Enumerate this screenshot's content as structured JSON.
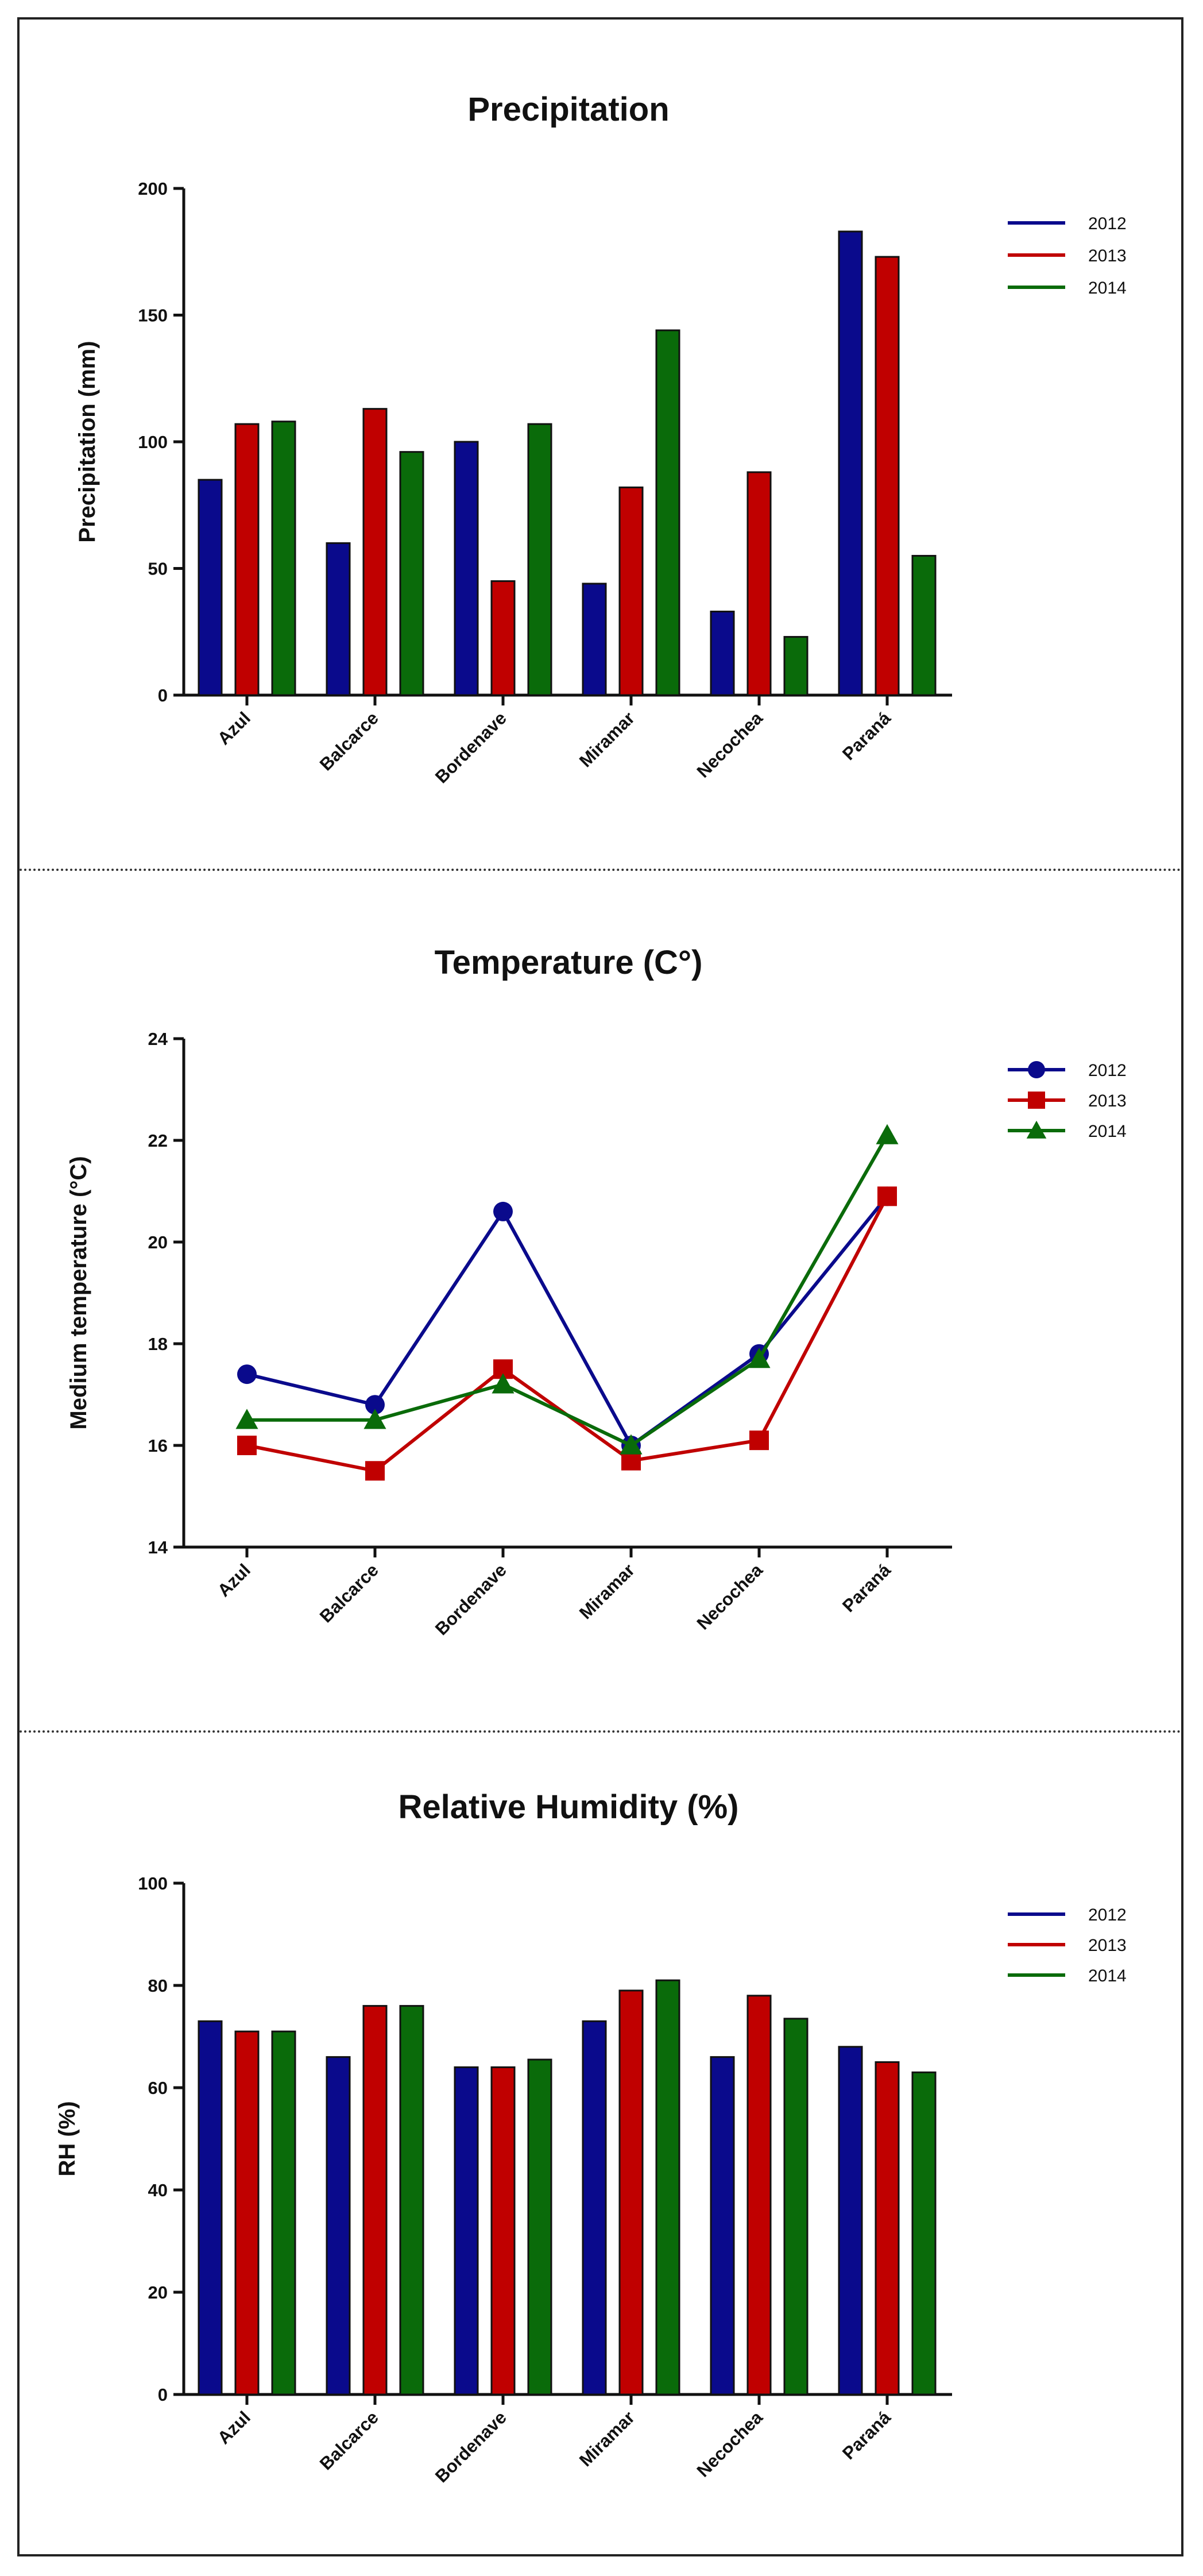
{
  "chart_data": [
    {
      "type": "bar",
      "title": "Precipitation",
      "xlabel": "",
      "ylabel": "Precipitation (mm)",
      "ylim": [
        0,
        200
      ],
      "yticks": [
        0,
        50,
        100,
        150,
        200
      ],
      "categories": [
        "Azul",
        "Balcarce",
        "Bordenave",
        "Miramar",
        "Necochea",
        "Paraná"
      ],
      "series": [
        {
          "name": "2012",
          "color": "#0a0a8c",
          "values": [
            85,
            60,
            100,
            44,
            33,
            183
          ]
        },
        {
          "name": "2013",
          "color": "#c00000",
          "values": [
            107,
            113,
            45,
            82,
            88,
            173
          ]
        },
        {
          "name": "2014",
          "color": "#0a6b0a",
          "values": [
            108,
            96,
            107,
            144,
            23,
            55
          ]
        }
      ],
      "legend": "top-right"
    },
    {
      "type": "line",
      "title": "Temperature (C°)",
      "xlabel": "",
      "ylabel": "Medium temperature (°C)",
      "ylim": [
        14,
        24
      ],
      "yticks": [
        14,
        16,
        18,
        20,
        22,
        24
      ],
      "categories": [
        "Azul",
        "Balcarce",
        "Bordenave",
        "Miramar",
        "Necochea",
        "Paraná"
      ],
      "series": [
        {
          "name": "2012",
          "color": "#0a0a8c",
          "marker": "circle",
          "values": [
            17.4,
            16.8,
            20.6,
            16.0,
            17.8,
            20.9
          ]
        },
        {
          "name": "2013",
          "color": "#c00000",
          "marker": "square",
          "values": [
            16.0,
            15.5,
            17.5,
            15.7,
            16.1,
            20.9
          ]
        },
        {
          "name": "2014",
          "color": "#0a6b0a",
          "marker": "triangle",
          "values": [
            16.5,
            16.5,
            17.2,
            16.0,
            17.7,
            22.1
          ]
        }
      ],
      "legend": "top-right"
    },
    {
      "type": "bar",
      "title": "Relative Humidity (%)",
      "xlabel": "",
      "ylabel": "RH (%)",
      "ylim": [
        0,
        100
      ],
      "yticks": [
        0,
        20,
        40,
        60,
        80,
        100
      ],
      "categories": [
        "Azul",
        "Balcarce",
        "Bordenave",
        "Miramar",
        "Necochea",
        "Paraná"
      ],
      "series": [
        {
          "name": "2012",
          "color": "#0a0a8c",
          "values": [
            73,
            66,
            64,
            73,
            66,
            68
          ]
        },
        {
          "name": "2013",
          "color": "#c00000",
          "values": [
            71,
            76,
            64,
            79,
            78,
            65
          ]
        },
        {
          "name": "2014",
          "color": "#0a6b0a",
          "values": [
            71,
            76,
            65.5,
            81,
            73.5,
            63
          ]
        }
      ],
      "legend": "top-right"
    }
  ]
}
